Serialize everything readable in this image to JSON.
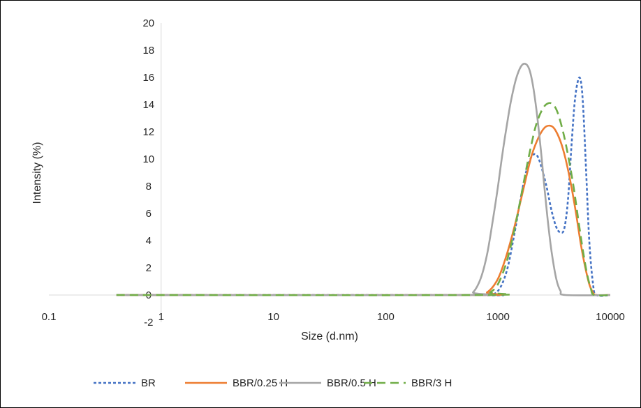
{
  "chart_data": {
    "type": "line",
    "xlabel": "Size (d.nm)",
    "ylabel": "Intensity (%)",
    "x_scale": "log",
    "xlim": [
      0.1,
      10000
    ],
    "ylim": [
      -2,
      20
    ],
    "x_ticks": [
      "0.1",
      "1",
      "10",
      "100",
      "1000",
      "10000"
    ],
    "y_ticks": [
      "-2",
      "0",
      "2",
      "4",
      "6",
      "8",
      "10",
      "12",
      "14",
      "16",
      "18",
      "20"
    ],
    "grid": false,
    "legend_position": "bottom",
    "series": [
      {
        "name": "BR",
        "color": "#4472C4",
        "dash": "dotted",
        "points": [
          [
            0.4,
            0
          ],
          [
            600,
            0
          ],
          [
            800,
            0
          ],
          [
            1000,
            0.3
          ],
          [
            1200,
            1.8
          ],
          [
            1400,
            4.5
          ],
          [
            1600,
            7.2
          ],
          [
            1800,
            9.2
          ],
          [
            2000,
            10.2
          ],
          [
            2200,
            10.3
          ],
          [
            2400,
            9.6
          ],
          [
            2700,
            8.0
          ],
          [
            3000,
            6.2
          ],
          [
            3300,
            5.0
          ],
          [
            3600,
            4.6
          ],
          [
            3900,
            4.9
          ],
          [
            4200,
            7.0
          ],
          [
            4500,
            10.8
          ],
          [
            4800,
            14.0
          ],
          [
            5100,
            15.6
          ],
          [
            5400,
            15.9
          ],
          [
            5700,
            14.2
          ],
          [
            6100,
            9.0
          ],
          [
            6500,
            4.0
          ],
          [
            7000,
            0.9
          ],
          [
            7500,
            0
          ],
          [
            10000,
            0
          ]
        ]
      },
      {
        "name": "BBR/0.25 H",
        "color": "#ED7D31",
        "dash": "solid",
        "points": [
          [
            0.4,
            0
          ],
          [
            600,
            0
          ],
          [
            800,
            0.2
          ],
          [
            1000,
            1.2
          ],
          [
            1200,
            3.0
          ],
          [
            1400,
            5.0
          ],
          [
            1600,
            7.0
          ],
          [
            1800,
            8.8
          ],
          [
            2000,
            10.3
          ],
          [
            2300,
            11.6
          ],
          [
            2600,
            12.3
          ],
          [
            2900,
            12.45
          ],
          [
            3200,
            12.2
          ],
          [
            3600,
            11.3
          ],
          [
            4000,
            10.0
          ],
          [
            4500,
            8.0
          ],
          [
            5000,
            5.8
          ],
          [
            5500,
            3.6
          ],
          [
            6000,
            2.0
          ],
          [
            6500,
            0.8
          ],
          [
            7000,
            0.2
          ],
          [
            7500,
            0
          ],
          [
            10000,
            0
          ]
        ]
      },
      {
        "name": "BBR/0.5 H",
        "color": "#A5A5A5",
        "dash": "solid",
        "points": [
          [
            0.4,
            0
          ],
          [
            500,
            0
          ],
          [
            600,
            0.2
          ],
          [
            700,
            1.2
          ],
          [
            800,
            3.0
          ],
          [
            900,
            5.5
          ],
          [
            1000,
            8.0
          ],
          [
            1100,
            10.5
          ],
          [
            1200,
            12.5
          ],
          [
            1300,
            14.2
          ],
          [
            1450,
            15.9
          ],
          [
            1600,
            16.8
          ],
          [
            1750,
            17.0
          ],
          [
            1900,
            16.6
          ],
          [
            2050,
            15.4
          ],
          [
            2200,
            13.6
          ],
          [
            2400,
            10.8
          ],
          [
            2600,
            7.8
          ],
          [
            2800,
            5.2
          ],
          [
            3000,
            3.2
          ],
          [
            3300,
            1.2
          ],
          [
            3600,
            0.3
          ],
          [
            4000,
            0
          ],
          [
            10000,
            0
          ]
        ]
      },
      {
        "name": "BBR/3 H",
        "color": "#70AD47",
        "dash": "dashed",
        "points": [
          [
            0.4,
            0
          ],
          [
            700,
            0
          ],
          [
            850,
            0.2
          ],
          [
            1000,
            0.8
          ],
          [
            1200,
            2.5
          ],
          [
            1400,
            4.8
          ],
          [
            1600,
            7.2
          ],
          [
            1800,
            9.4
          ],
          [
            2000,
            11.2
          ],
          [
            2200,
            12.6
          ],
          [
            2500,
            13.7
          ],
          [
            2800,
            14.1
          ],
          [
            3100,
            14.0
          ],
          [
            3400,
            13.4
          ],
          [
            3800,
            12.0
          ],
          [
            4200,
            10.3
          ],
          [
            4700,
            8.0
          ],
          [
            5200,
            5.5
          ],
          [
            5700,
            3.3
          ],
          [
            6200,
            1.6
          ],
          [
            6700,
            0.5
          ],
          [
            7200,
            0
          ],
          [
            10000,
            0
          ]
        ]
      }
    ]
  }
}
